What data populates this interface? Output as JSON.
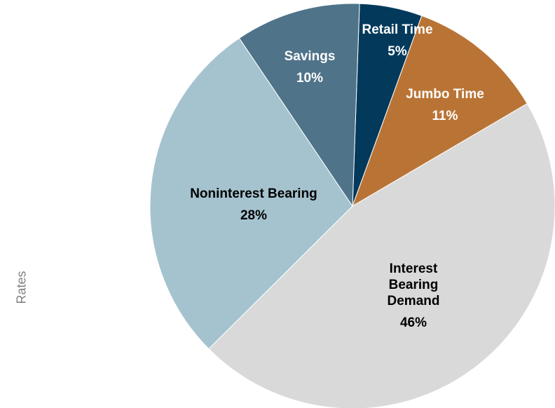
{
  "chart_data": {
    "type": "pie",
    "ylabel": "Rates",
    "categories": [
      "Retail Time",
      "Jumbo Time",
      "Interest Bearing Demand",
      "Noninterest Bearing",
      "Savings"
    ],
    "values": [
      5,
      11,
      46,
      28,
      10
    ],
    "value_labels": [
      "5%",
      "11%",
      "46%",
      "28%",
      "10%"
    ],
    "colors": [
      "#033a5c",
      "#b97435",
      "#d9d9d9",
      "#a5c3cf",
      "#4f7389"
    ]
  }
}
